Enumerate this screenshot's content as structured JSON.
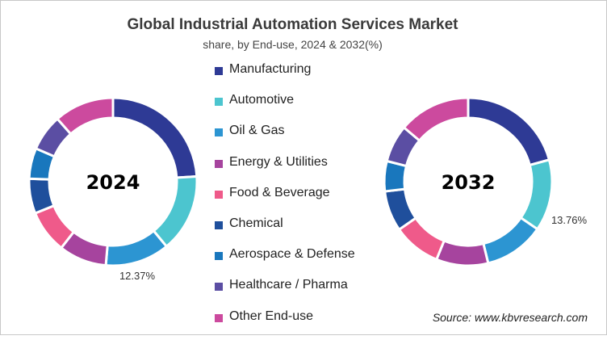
{
  "chart_data": [
    {
      "type": "donut",
      "title": "Global Industrial Automation Services Market",
      "subtitle": "share, by End-use, 2024 & 2032(%)",
      "center_label": "2024",
      "categories": [
        "Manufacturing",
        "Automotive",
        "Oil & Gas",
        "Energy & Utilities",
        "Food & Beverage",
        "Chemical",
        "Aerospace & Defense",
        "Healthcare / Pharma",
        "Other End-use"
      ],
      "values": [
        24.0,
        15.0,
        12.37,
        9.2,
        8.3,
        6.7,
        5.9,
        7.0,
        11.53
      ],
      "data_labels": [
        {
          "category": "Oil & Gas",
          "text": "12.37%"
        }
      ]
    },
    {
      "type": "donut",
      "center_label": "2032",
      "categories": [
        "Manufacturing",
        "Automotive",
        "Oil & Gas",
        "Energy & Utilities",
        "Food & Beverage",
        "Chemical",
        "Aerospace & Defense",
        "Healthcare / Pharma",
        "Other End-use"
      ],
      "values": [
        20.8,
        13.76,
        11.6,
        10.0,
        9.2,
        7.8,
        5.8,
        7.2,
        13.84
      ],
      "data_labels": [
        {
          "category": "Automotive",
          "text": "13.76%"
        }
      ]
    }
  ],
  "legend": {
    "placement": "center",
    "items": [
      {
        "label": "Manufacturing",
        "color": "#2e3a95"
      },
      {
        "label": "Automotive",
        "color": "#4cc5cf"
      },
      {
        "label": "Oil & Gas",
        "color": "#2c95d2"
      },
      {
        "label": "Energy & Utilities",
        "color": "#a6449e"
      },
      {
        "label": "Food & Beverage",
        "color": "#ef5a8a"
      },
      {
        "label": "Chemical",
        "color": "#1f4f9c"
      },
      {
        "label": "Aerospace & Defense",
        "color": "#1977bd"
      },
      {
        "label": "Healthcare / Pharma",
        "color": "#5b4ea3"
      },
      {
        "label": "Other End-use",
        "color": "#cc4a9e"
      }
    ]
  },
  "source": "Source: www.kbvresearch.com"
}
